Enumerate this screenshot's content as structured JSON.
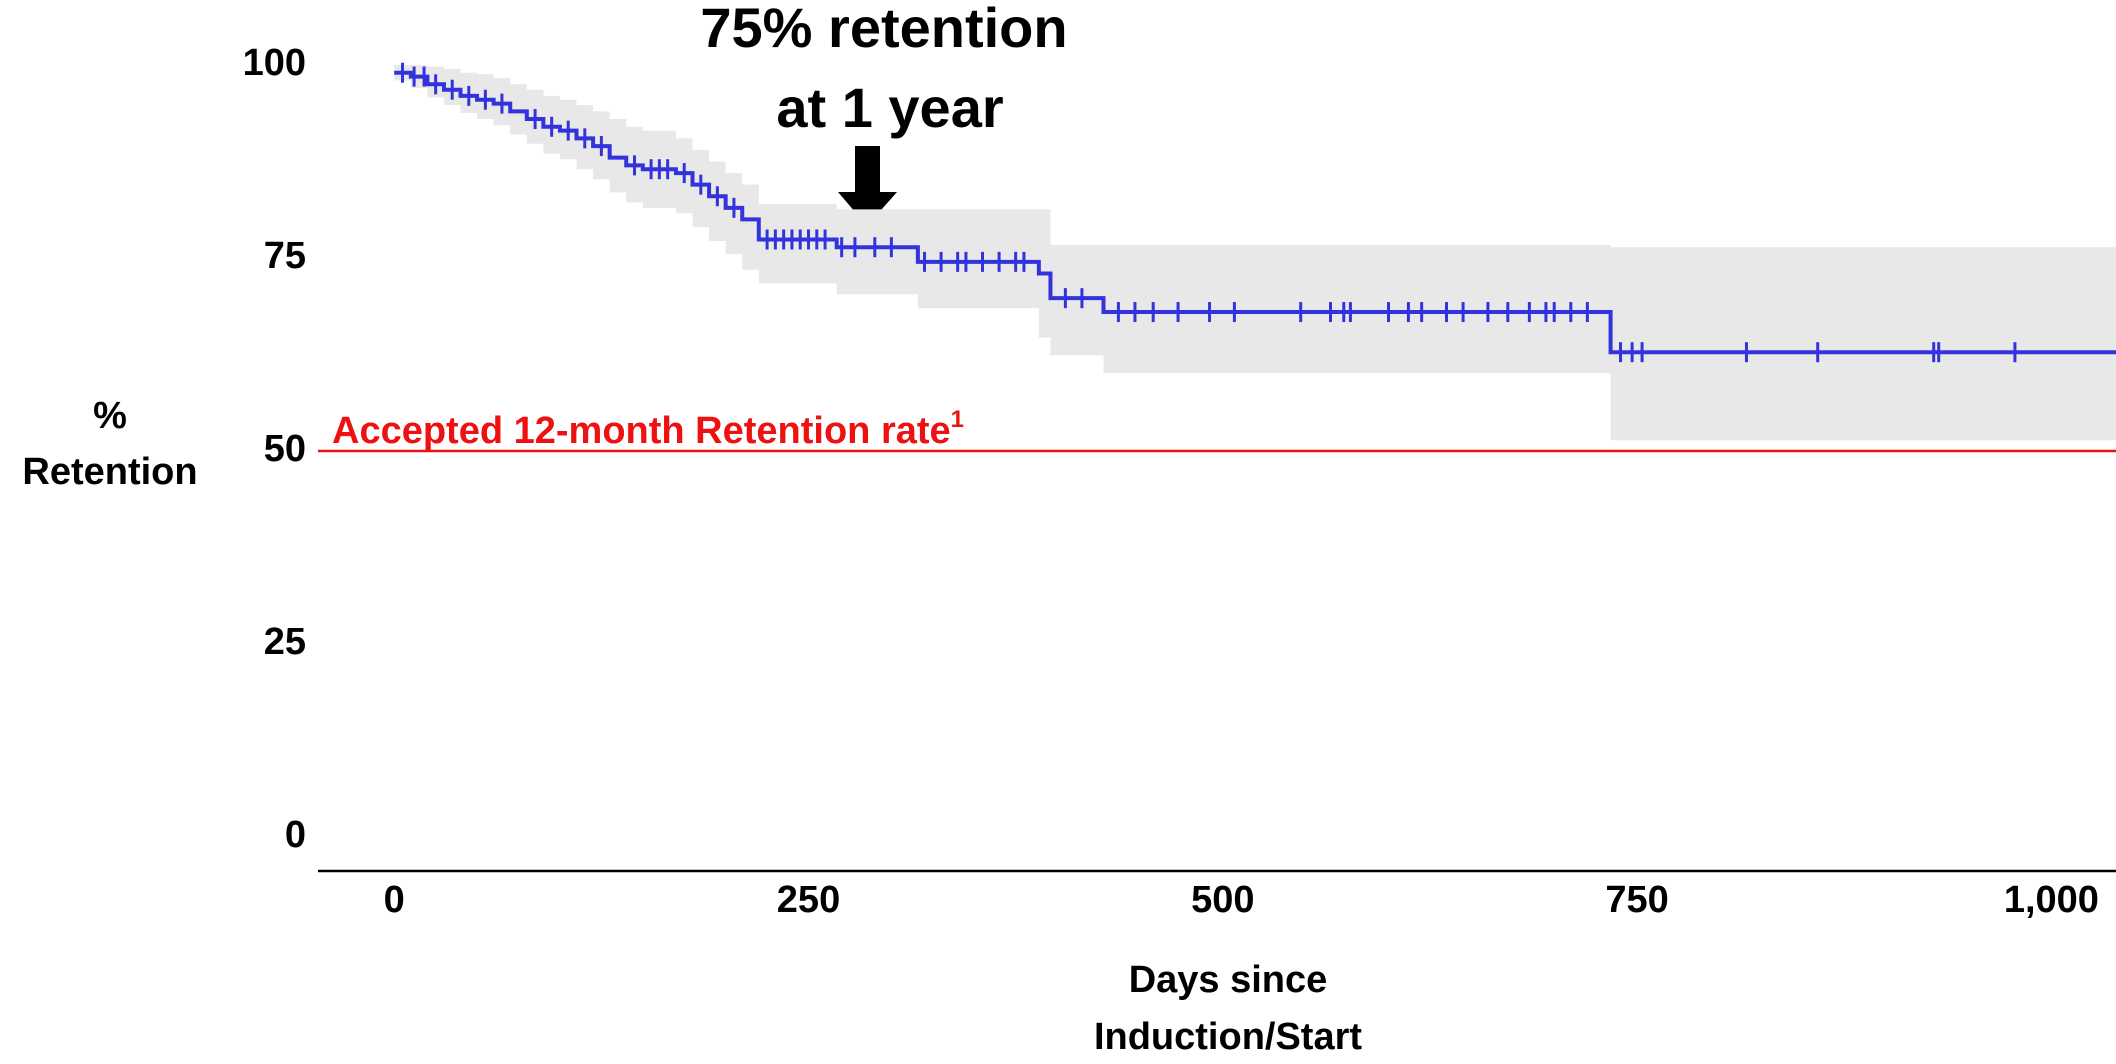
{
  "chart_data": {
    "type": "survival",
    "annotation": [
      "75% retention",
      "at 1 year"
    ],
    "x_label": [
      "Days since",
      "Induction/Start"
    ],
    "y_label": [
      "%",
      "Retention"
    ],
    "xlim": [
      -46,
      1039
    ],
    "ylim": [
      -4.4,
      100
    ],
    "xticks": [
      0,
      250,
      500,
      750,
      {
        "value": 1000,
        "label": "1,000"
      }
    ],
    "yticks": [
      0,
      25,
      50,
      75,
      100
    ],
    "reference_line": {
      "value": 50,
      "label": "Accepted 12-month Retention rate",
      "superscript": "1",
      "color": "#ee1111"
    },
    "series": [
      {
        "color": "#3333dd",
        "band_color": "#e8e8e8",
        "x": [
          0,
          10,
          20,
          30,
          40,
          50,
          60,
          70,
          80,
          90,
          100,
          110,
          120,
          130,
          140,
          150,
          170,
          180,
          190,
          200,
          210,
          220,
          267,
          316,
          389,
          396,
          428,
          734
        ],
        "values": [
          99,
          98.5,
          97.5,
          96.8,
          96,
          95.5,
          95,
          94,
          93,
          92,
          91.5,
          90.5,
          89.5,
          88,
          87,
          86.5,
          86,
          84.5,
          83,
          81.5,
          80,
          77.4,
          76.4,
          74.5,
          73,
          69.8,
          68,
          62.8
        ],
        "ci_upper": [
          100,
          100,
          99.8,
          99.5,
          99,
          98.8,
          98.3,
          97.5,
          96.8,
          96,
          95.5,
          94.8,
          94,
          93,
          92,
          91.5,
          90.5,
          89,
          87.5,
          86,
          84.5,
          82,
          81.3,
          81.3,
          81.3,
          76.7,
          76.7,
          76.4
        ],
        "ci_lower": [
          98,
          97,
          95.8,
          94.8,
          93.8,
          93,
          92.2,
          91,
          89.8,
          88.5,
          87.8,
          86.5,
          85.2,
          83.5,
          82.2,
          81.5,
          80.8,
          79,
          77.2,
          75.5,
          73.5,
          71.7,
          70.3,
          68.5,
          64.7,
          62.4,
          60.1,
          51.4
        ],
        "censored": {
          "x": [
            5,
            12,
            18,
            25,
            35,
            45,
            55,
            65,
            85,
            95,
            105,
            115,
            125,
            145,
            155,
            160,
            165,
            175,
            185,
            195,
            205,
            225,
            230,
            235,
            240,
            245,
            250,
            255,
            260,
            270,
            278,
            290,
            300,
            320,
            330,
            340,
            345,
            355,
            365,
            375,
            380,
            405,
            415,
            437,
            447,
            458,
            473,
            492,
            507,
            547,
            565,
            573,
            577,
            600,
            612,
            620,
            635,
            645,
            660,
            672,
            685,
            695,
            700,
            710,
            720,
            740,
            747,
            753,
            816,
            859,
            929,
            932,
            978
          ],
          "values": [
            99,
            98.5,
            98.5,
            97.5,
            96.8,
            96,
            95.5,
            95,
            93,
            92,
            91.5,
            90.5,
            89.5,
            87,
            86.5,
            86.5,
            86.5,
            86,
            84.5,
            83,
            81.5,
            77.4,
            77.4,
            77.4,
            77.4,
            77.4,
            77.4,
            77.4,
            77.4,
            76.4,
            76.4,
            76.4,
            76.4,
            74.5,
            74.5,
            74.5,
            74.5,
            74.5,
            74.5,
            74.5,
            74.5,
            69.8,
            69.8,
            68,
            68,
            68,
            68,
            68,
            68,
            68,
            68,
            68,
            68,
            68,
            68,
            68,
            68,
            68,
            68,
            68,
            68,
            68,
            68,
            68,
            68,
            62.8,
            62.8,
            62.8,
            62.8,
            62.8,
            62.8,
            62.8,
            62.8
          ]
        }
      }
    ]
  }
}
